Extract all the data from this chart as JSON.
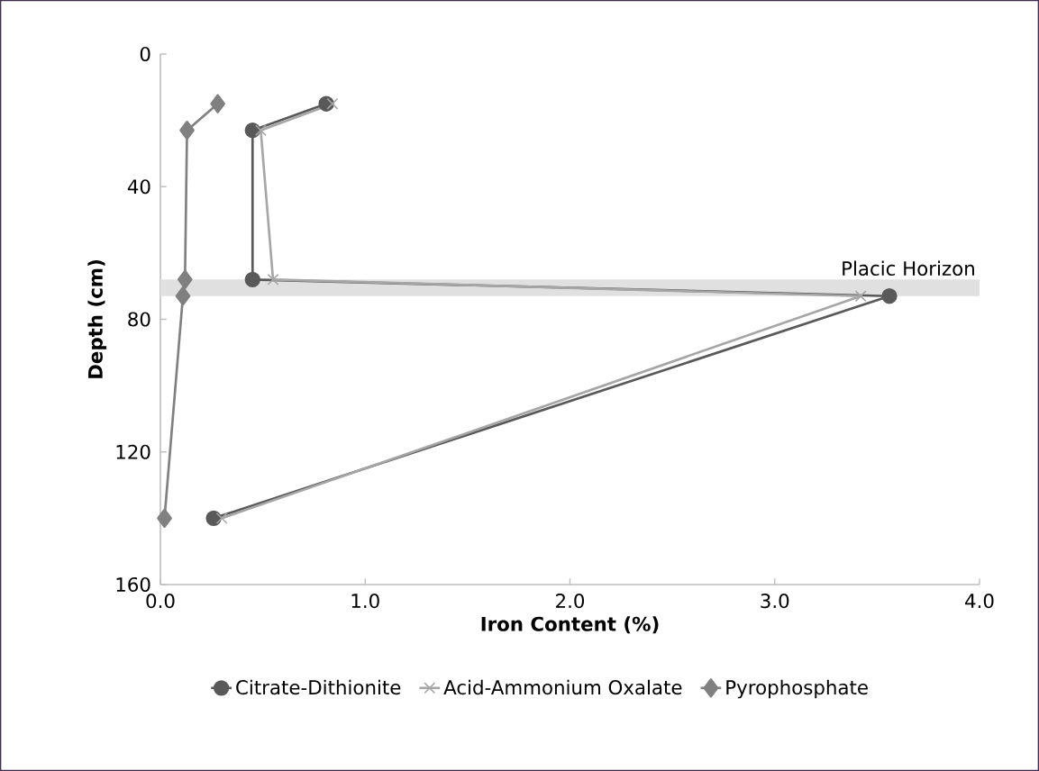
{
  "chart_data": {
    "type": "line",
    "xlabel": "Iron Content (%)",
    "ylabel": "Depth (cm)",
    "xlim": [
      0,
      4.0
    ],
    "xticks": [
      {
        "value": 0,
        "label": "0.0"
      },
      {
        "value": 1,
        "label": "1.0"
      },
      {
        "value": 2,
        "label": "2.0"
      },
      {
        "value": 3,
        "label": "3.0"
      },
      {
        "value": 4,
        "label": "4.0"
      }
    ],
    "ylim": [
      160,
      0
    ],
    "yticks": [
      0,
      40,
      80,
      120,
      160
    ],
    "series": [
      {
        "name": "Citrate-Dithionite",
        "color": "#595959",
        "marker": "circle",
        "x": [
          0.81,
          0.45,
          0.45,
          3.56,
          0.26
        ],
        "values": [
          15,
          23,
          68,
          73,
          140
        ]
      },
      {
        "name": "Acid-Ammonium Oxalate",
        "color": "#a6a6a6",
        "marker": "cross",
        "x": [
          0.84,
          0.49,
          0.55,
          3.42,
          0.3
        ],
        "values": [
          15,
          23,
          68,
          73,
          140
        ]
      },
      {
        "name": "Pyrophosphate",
        "color": "#808080",
        "marker": "diamond",
        "x": [
          0.28,
          0.13,
          0.12,
          0.11,
          0.02
        ],
        "values": [
          15,
          23,
          68,
          73,
          140
        ]
      }
    ],
    "bands": [
      {
        "axis": "y",
        "from": 68,
        "to": 73,
        "label": "Placic Horizon",
        "color": "#e0e0e0"
      }
    ],
    "legend": "bottom",
    "grid": false
  }
}
